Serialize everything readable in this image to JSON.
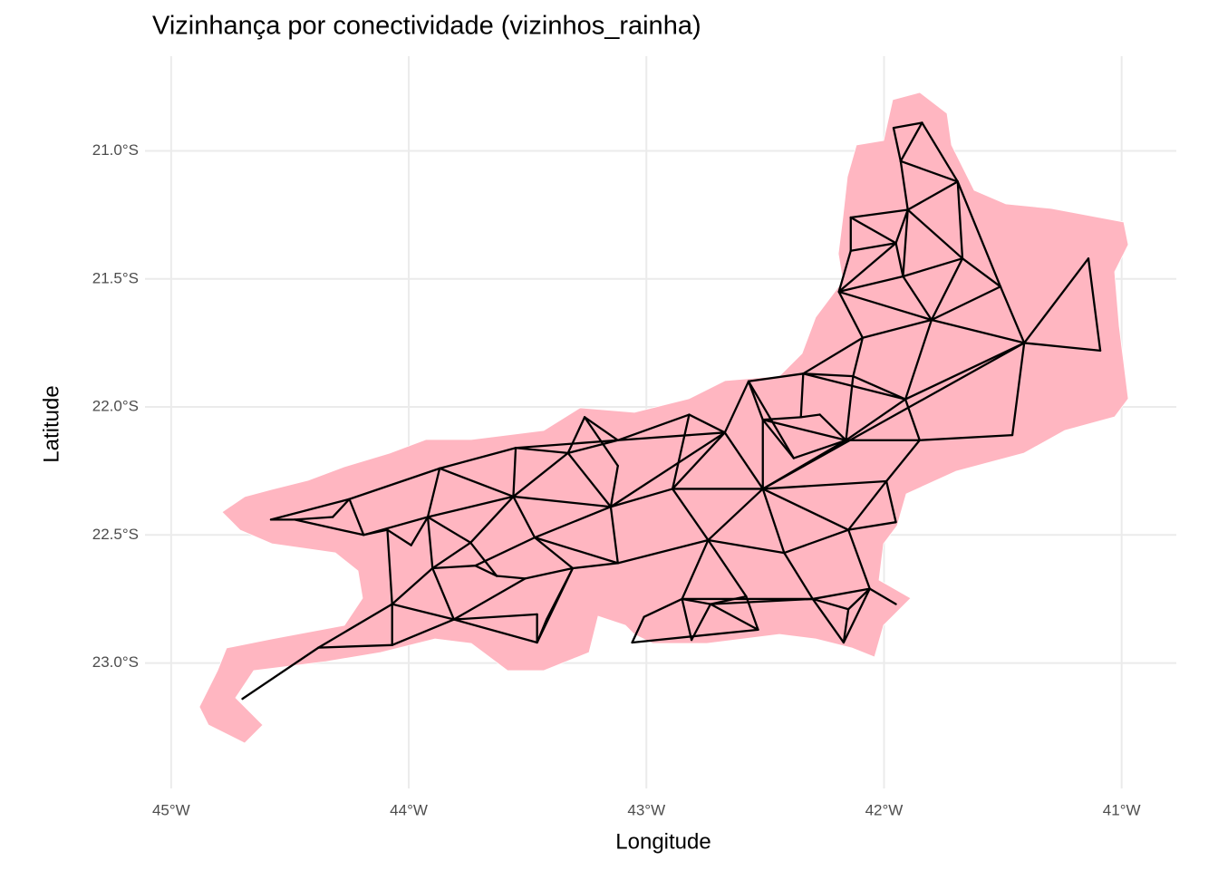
{
  "chart_data": {
    "type": "map",
    "title": "Vizinhança por conectividade (vizinhos_rainha)",
    "x_label": "Longitude",
    "y_label": "Latitude",
    "xlim": [
      -45.11,
      -40.77
    ],
    "ylim": [
      -23.49,
      -20.63
    ],
    "xticks": [
      {
        "value": -45,
        "label": "45°W"
      },
      {
        "value": -44,
        "label": "44°W"
      },
      {
        "value": -43,
        "label": "43°W"
      },
      {
        "value": -42,
        "label": "42°W"
      },
      {
        "value": -41,
        "label": "41°W"
      }
    ],
    "yticks": [
      {
        "value": -21,
        "label": "21.0°S"
      },
      {
        "value": -21.5,
        "label": "21.5°S"
      },
      {
        "value": -22,
        "label": "22.0°S"
      },
      {
        "value": -22.5,
        "label": "22.5°S"
      },
      {
        "value": -23,
        "label": "23.0°S"
      }
    ],
    "grid": true,
    "region_color": "#ffb6c1",
    "edge_color": "#000000",
    "nodes": {
      "x": [
        -41.96,
        -41.84,
        -41.93,
        -41.69,
        -41.9,
        -42.14,
        -41.95,
        -42.14,
        -41.67,
        -41.92,
        -42.19,
        -41.51,
        -41.8,
        -42.09,
        -41.41,
        -41.14,
        -41.09,
        -42.34,
        -42.13,
        -41.91,
        -42.57,
        -42.51,
        -42.35,
        -42.27,
        -42.16,
        -42.38,
        -41.85,
        -41.46,
        -42.82,
        -42.67,
        -43.12,
        -43.26,
        -43.12,
        -43.33,
        -43.55,
        -43.87,
        -42.51,
        -41.99,
        -42.89,
        -43.15,
        -43.56,
        -43.92,
        -44.25,
        -44.48,
        -44.58,
        -44.32,
        -44.19,
        -44.09,
        -43.99,
        -43.74,
        -43.47,
        -43.12,
        -42.74,
        -42.42,
        -42.15,
        -41.95,
        -43.9,
        -43.72,
        -43.63,
        -43.51,
        -44.07,
        -43.81,
        -43.31,
        -43.46,
        -43.46,
        -43.42,
        -44.07,
        -44.38,
        -44.7,
        -42.85,
        -42.58,
        -42.3,
        -42.06,
        -41.95,
        -43.01,
        -43.06,
        -42.81,
        -42.53,
        -42.17,
        -42.15,
        -42.73
      ],
      "y": [
        -20.91,
        -20.89,
        -21.04,
        -21.12,
        -21.23,
        -21.26,
        -21.36,
        -21.39,
        -21.42,
        -21.49,
        -21.55,
        -21.53,
        -21.66,
        -21.73,
        -21.75,
        -21.42,
        -21.78,
        -21.87,
        -21.88,
        -21.97,
        -21.9,
        -22.05,
        -22.04,
        -22.03,
        -22.13,
        -22.2,
        -22.13,
        -22.11,
        -22.03,
        -22.1,
        -22.13,
        -22.04,
        -22.23,
        -22.18,
        -22.16,
        -22.24,
        -22.32,
        -22.29,
        -22.32,
        -22.39,
        -22.35,
        -22.43,
        -22.36,
        -22.44,
        -22.44,
        -22.43,
        -22.5,
        -22.48,
        -22.54,
        -22.53,
        -22.51,
        -22.61,
        -22.52,
        -22.57,
        -22.48,
        -22.45,
        -22.63,
        -22.62,
        -22.66,
        -22.67,
        -22.77,
        -22.83,
        -22.63,
        -22.92,
        -22.81,
        -22.83,
        -22.93,
        -22.94,
        -23.14,
        -22.75,
        -22.74,
        -22.75,
        -22.71,
        -22.77,
        -22.82,
        -22.92,
        -22.91,
        -22.87,
        -22.92,
        -22.79,
        -22.77
      ]
    },
    "edges": [
      [
        0,
        1
      ],
      [
        0,
        2
      ],
      [
        1,
        2
      ],
      [
        1,
        3
      ],
      [
        2,
        3
      ],
      [
        2,
        4
      ],
      [
        3,
        4
      ],
      [
        4,
        5
      ],
      [
        4,
        6
      ],
      [
        4,
        9
      ],
      [
        4,
        8
      ],
      [
        3,
        8
      ],
      [
        5,
        6
      ],
      [
        5,
        7
      ],
      [
        6,
        7
      ],
      [
        6,
        9
      ],
      [
        6,
        10
      ],
      [
        7,
        10
      ],
      [
        9,
        10
      ],
      [
        8,
        9
      ],
      [
        8,
        12
      ],
      [
        8,
        11
      ],
      [
        3,
        11
      ],
      [
        10,
        12
      ],
      [
        10,
        13
      ],
      [
        9,
        12
      ],
      [
        11,
        12
      ],
      [
        11,
        14
      ],
      [
        12,
        14
      ],
      [
        14,
        15
      ],
      [
        15,
        16
      ],
      [
        14,
        16
      ],
      [
        13,
        12
      ],
      [
        13,
        17
      ],
      [
        13,
        18
      ],
      [
        12,
        19
      ],
      [
        17,
        18
      ],
      [
        18,
        19
      ],
      [
        19,
        14
      ],
      [
        17,
        20
      ],
      [
        17,
        22
      ],
      [
        17,
        19
      ],
      [
        20,
        21
      ],
      [
        20,
        29
      ],
      [
        20,
        25
      ],
      [
        22,
        23
      ],
      [
        23,
        24
      ],
      [
        18,
        24
      ],
      [
        19,
        24
      ],
      [
        24,
        25
      ],
      [
        21,
        22
      ],
      [
        21,
        25
      ],
      [
        21,
        24
      ],
      [
        21,
        36
      ],
      [
        24,
        26
      ],
      [
        24,
        36
      ],
      [
        26,
        27
      ],
      [
        27,
        14
      ],
      [
        19,
        26
      ],
      [
        14,
        36
      ],
      [
        26,
        37
      ],
      [
        36,
        37
      ],
      [
        36,
        29
      ],
      [
        29,
        28
      ],
      [
        28,
        30
      ],
      [
        30,
        29
      ],
      [
        30,
        31
      ],
      [
        31,
        32
      ],
      [
        30,
        33
      ],
      [
        30,
        34
      ],
      [
        31,
        33
      ],
      [
        33,
        34
      ],
      [
        34,
        35
      ],
      [
        29,
        39
      ],
      [
        28,
        38
      ],
      [
        29,
        38
      ],
      [
        38,
        36
      ],
      [
        37,
        55
      ],
      [
        37,
        54
      ],
      [
        36,
        54
      ],
      [
        36,
        52
      ],
      [
        36,
        53
      ],
      [
        38,
        39
      ],
      [
        39,
        32
      ],
      [
        39,
        33
      ],
      [
        39,
        40
      ],
      [
        39,
        51
      ],
      [
        39,
        50
      ],
      [
        38,
        52
      ],
      [
        51,
        52
      ],
      [
        52,
        53
      ],
      [
        53,
        54
      ],
      [
        54,
        55
      ],
      [
        54,
        72
      ],
      [
        52,
        69
      ],
      [
        52,
        70
      ],
      [
        53,
        71
      ],
      [
        40,
        33
      ],
      [
        40,
        34
      ],
      [
        40,
        35
      ],
      [
        40,
        41
      ],
      [
        40,
        50
      ],
      [
        40,
        49
      ],
      [
        35,
        41
      ],
      [
        35,
        42
      ],
      [
        42,
        44
      ],
      [
        42,
        45
      ],
      [
        42,
        46
      ],
      [
        44,
        43
      ],
      [
        43,
        46
      ],
      [
        45,
        43
      ],
      [
        46,
        41
      ],
      [
        41,
        48
      ],
      [
        41,
        49
      ],
      [
        41,
        56
      ],
      [
        47,
        60
      ],
      [
        47,
        48
      ],
      [
        56,
        57
      ],
      [
        57,
        58
      ],
      [
        58,
        59
      ],
      [
        49,
        58
      ],
      [
        49,
        56
      ],
      [
        50,
        57
      ],
      [
        50,
        62
      ],
      [
        62,
        59
      ],
      [
        59,
        61
      ],
      [
        61,
        56
      ],
      [
        61,
        60
      ],
      [
        60,
        56
      ],
      [
        61,
        64
      ],
      [
        64,
        63
      ],
      [
        63,
        62
      ],
      [
        63,
        65
      ],
      [
        65,
        62
      ],
      [
        60,
        66
      ],
      [
        60,
        67
      ],
      [
        67,
        66
      ],
      [
        66,
        61
      ],
      [
        67,
        68
      ],
      [
        61,
        63
      ],
      [
        51,
        62
      ],
      [
        51,
        50
      ],
      [
        69,
        80
      ],
      [
        80,
        71
      ],
      [
        69,
        71
      ],
      [
        69,
        74
      ],
      [
        74,
        75
      ],
      [
        75,
        77
      ],
      [
        76,
        69
      ],
      [
        76,
        80
      ],
      [
        77,
        80
      ],
      [
        77,
        70
      ],
      [
        70,
        80
      ],
      [
        71,
        79
      ],
      [
        79,
        78
      ],
      [
        78,
        71
      ],
      [
        71,
        72
      ],
      [
        72,
        73
      ],
      [
        72,
        78
      ],
      [
        72,
        79
      ],
      [
        47,
        46
      ]
    ]
  }
}
